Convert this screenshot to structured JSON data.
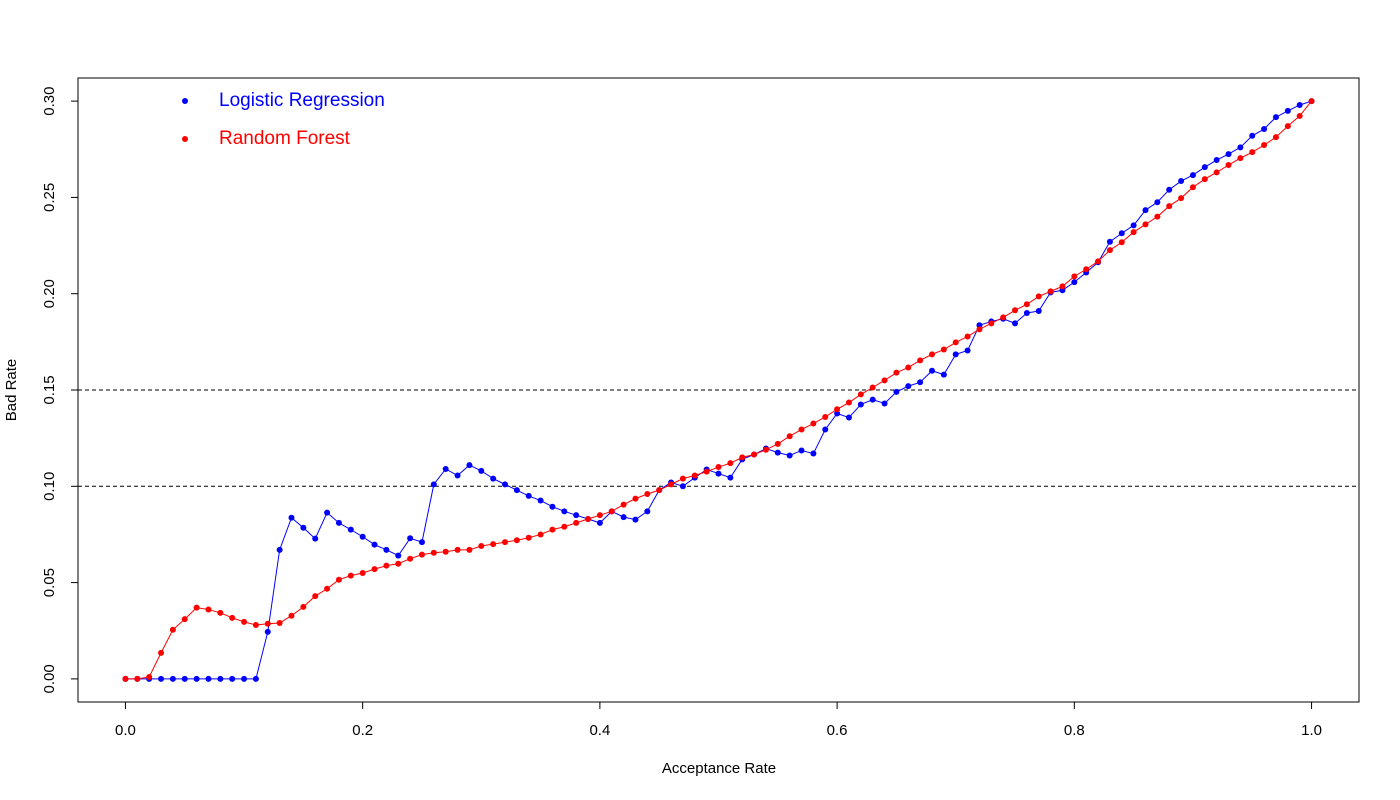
{
  "chart_data": {
    "type": "line",
    "xlabel": "Acceptance Rate",
    "ylabel": "Bad Rate",
    "x": [
      0,
      0.01,
      0.02,
      0.03,
      0.04,
      0.05,
      0.06,
      0.07,
      0.08,
      0.09,
      0.1,
      0.11,
      0.12,
      0.13,
      0.14,
      0.15,
      0.16,
      0.17,
      0.18,
      0.19,
      0.2,
      0.21,
      0.22,
      0.23,
      0.24,
      0.25,
      0.26,
      0.27,
      0.28,
      0.29,
      0.3,
      0.31,
      0.32,
      0.33,
      0.34,
      0.35,
      0.36,
      0.37,
      0.38,
      0.39,
      0.4,
      0.41,
      0.42,
      0.43,
      0.44,
      0.45,
      0.46,
      0.47,
      0.48,
      0.49,
      0.5,
      0.51,
      0.52,
      0.53,
      0.54,
      0.55,
      0.56,
      0.57,
      0.58,
      0.59,
      0.6,
      0.61,
      0.62,
      0.63,
      0.64,
      0.65,
      0.66,
      0.67,
      0.68,
      0.69,
      0.7,
      0.71,
      0.72,
      0.73,
      0.74,
      0.75,
      0.76,
      0.77,
      0.78,
      0.79,
      0.8,
      0.81,
      0.82,
      0.83,
      0.84,
      0.85,
      0.86,
      0.87,
      0.88,
      0.89,
      0.9,
      0.91,
      0.92,
      0.93,
      0.94,
      0.95,
      0.96,
      0.97,
      0.98,
      0.99,
      1
    ],
    "series": [
      {
        "name": "Logistic Regression",
        "color": "#0000ff",
        "values": [
          0,
          0,
          0,
          0,
          0,
          0,
          0,
          0,
          0,
          0,
          0,
          0,
          0.0244,
          0.067,
          0.0837,
          0.0785,
          0.0728,
          0.0863,
          0.081,
          0.0775,
          0.0738,
          0.0697,
          0.067,
          0.064,
          0.073,
          0.071,
          0.101,
          0.109,
          0.1056,
          0.111,
          0.108,
          0.104,
          0.101,
          0.098,
          0.095,
          0.0926,
          0.0894,
          0.087,
          0.085,
          0.083,
          0.081,
          0.087,
          0.084,
          0.0827,
          0.087,
          0.098,
          0.102,
          0.1,
          0.1045,
          0.1087,
          0.1066,
          0.1045,
          0.114,
          0.1165,
          0.1196,
          0.1175,
          0.116,
          0.1186,
          0.117,
          0.1295,
          0.1378,
          0.1357,
          0.1425,
          0.145,
          0.143,
          0.149,
          0.152,
          0.154,
          0.16,
          0.158,
          0.1685,
          0.1705,
          0.1836,
          0.1856,
          0.187,
          0.1846,
          0.19,
          0.191,
          0.2007,
          0.2018,
          0.206,
          0.211,
          0.2163,
          0.227,
          0.2314,
          0.2355,
          0.2434,
          0.2475,
          0.254,
          0.2585,
          0.2616,
          0.2657,
          0.2694,
          0.2725,
          0.276,
          0.282,
          0.2855,
          0.2917,
          0.2949,
          0.298,
          0.3
        ]
      },
      {
        "name": "Random Forest",
        "color": "#ff0000",
        "values": [
          0,
          0,
          0.001,
          0.0135,
          0.0255,
          0.031,
          0.037,
          0.036,
          0.0343,
          0.0317,
          0.0296,
          0.028,
          0.0286,
          0.029,
          0.0328,
          0.0374,
          0.043,
          0.0468,
          0.0515,
          0.0536,
          0.055,
          0.057,
          0.0588,
          0.0598,
          0.0624,
          0.0645,
          0.0655,
          0.066,
          0.067,
          0.067,
          0.069,
          0.07,
          0.071,
          0.072,
          0.0733,
          0.075,
          0.0775,
          0.079,
          0.081,
          0.083,
          0.085,
          0.087,
          0.0905,
          0.0936,
          0.096,
          0.098,
          0.101,
          0.104,
          0.1056,
          0.1076,
          0.11,
          0.112,
          0.115,
          0.1165,
          0.119,
          0.122,
          0.126,
          0.1295,
          0.1326,
          0.136,
          0.14,
          0.1435,
          0.1477,
          0.1513,
          0.155,
          0.159,
          0.1617,
          0.1654,
          0.1685,
          0.171,
          0.1747,
          0.1778,
          0.1815,
          0.1846,
          0.1877,
          0.1914,
          0.1945,
          0.1986,
          0.2012,
          0.2038,
          0.209,
          0.2127,
          0.2168,
          0.2226,
          0.2267,
          0.232,
          0.236,
          0.24,
          0.2455,
          0.2496,
          0.2553,
          0.2595,
          0.263,
          0.2668,
          0.2704,
          0.2735,
          0.2772,
          0.2813,
          0.287,
          0.2923,
          0.3
        ]
      }
    ],
    "xlim": [
      -0.04,
      1.04
    ],
    "ylim": [
      -0.012,
      0.312
    ],
    "xticks": [
      {
        "value": 0,
        "label": "0.0"
      },
      0.2,
      0.4,
      0.6,
      0.8,
      {
        "value": 1,
        "label": "1.0"
      }
    ],
    "yticks": [
      {
        "value": 0,
        "label": "0.00"
      },
      {
        "value": 0.05,
        "label": "0.05"
      },
      {
        "value": 0.1,
        "label": "0.10"
      },
      {
        "value": 0.15,
        "label": "0.15"
      },
      {
        "value": 0.2,
        "label": "0.20"
      },
      {
        "value": 0.25,
        "label": "0.25"
      },
      {
        "value": 0.3,
        "label": "0.30"
      }
    ],
    "hlines": [
      0.1,
      0.15
    ],
    "legend": "topleft"
  }
}
